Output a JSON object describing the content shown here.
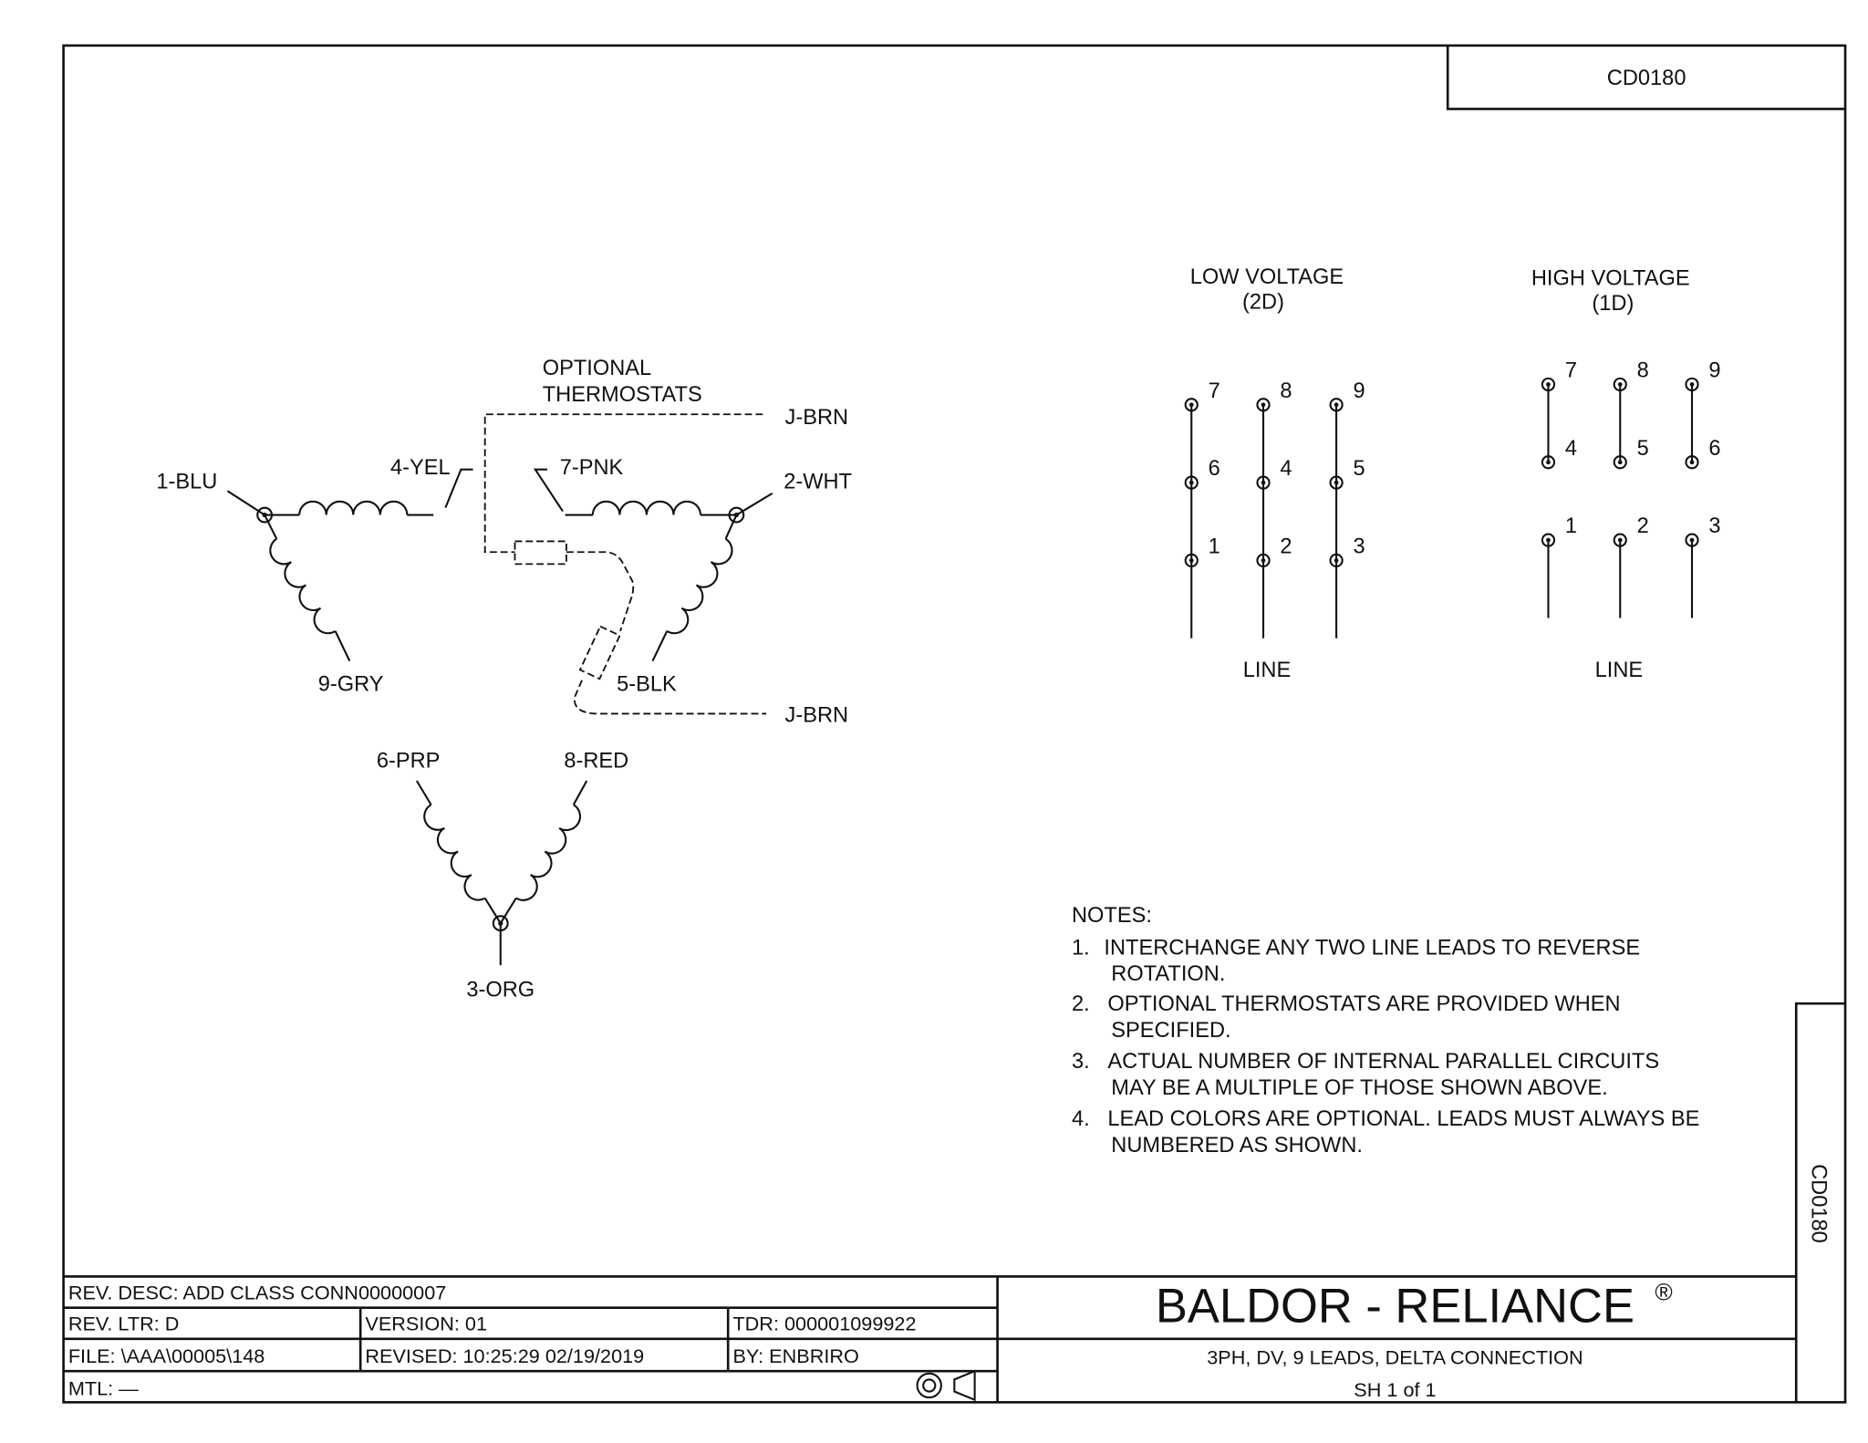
{
  "drawing_number": "CD0180",
  "diagram": {
    "optional_line1": "OPTIONAL",
    "optional_line2": "THERMOSTATS",
    "leads": {
      "l1": "1-BLU",
      "l2": "2-WHT",
      "l3": "3-ORG",
      "l4": "4-YEL",
      "l5": "5-BLK",
      "l6": "6-PRP",
      "l7": "7-PNK",
      "l8": "8-RED",
      "l9": "9-GRY",
      "j_top": "J-BRN",
      "j_bottom": "J-BRN"
    }
  },
  "low_voltage": {
    "title": "LOW VOLTAGE",
    "subtitle": "(2D)",
    "line_label": "LINE",
    "terminals": [
      "7",
      "6",
      "1",
      "8",
      "4",
      "2",
      "9",
      "5",
      "3"
    ]
  },
  "high_voltage": {
    "title": "HIGH VOLTAGE",
    "subtitle": "(1D)",
    "line_label": "LINE",
    "terminals": [
      "7",
      "4",
      "8",
      "5",
      "9",
      "6",
      "1",
      "2",
      "3"
    ]
  },
  "notes": {
    "heading": "NOTES:",
    "items": [
      {
        "num": "1.",
        "line1": "INTERCHANGE ANY TWO LINE LEADS TO REVERSE",
        "line2": "ROTATION."
      },
      {
        "num": "2.",
        "line1": "OPTIONAL THERMOSTATS ARE PROVIDED WHEN",
        "line2": "SPECIFIED."
      },
      {
        "num": "3.",
        "line1": "ACTUAL NUMBER OF INTERNAL PARALLEL CIRCUITS",
        "line2": "MAY BE A MULTIPLE OF THOSE SHOWN ABOVE."
      },
      {
        "num": "4.",
        "line1": "LEAD COLORS ARE OPTIONAL.  LEADS MUST ALWAYS BE",
        "line2": "NUMBERED AS SHOWN."
      }
    ]
  },
  "title_block": {
    "rev_desc": "REV. DESC:  ADD CLASS CONN00000007",
    "rev_ltr": "REV. LTR:  D",
    "version": "VERSION: 01",
    "tdr": "TDR: 000001099922",
    "file": "FILE: \\AAA\\00005\\148",
    "revised": "REVISED: 10:25:29  02/19/2019",
    "by": "BY: ENBRIRO",
    "mtl": "MTL:  —",
    "company": "BALDOR - RELIANCE",
    "registered": "®",
    "description": "3PH, DV, 9 LEADS, DELTA CONNECTION",
    "sheet": "SH 1 of 1",
    "side_number": "CD0180"
  }
}
